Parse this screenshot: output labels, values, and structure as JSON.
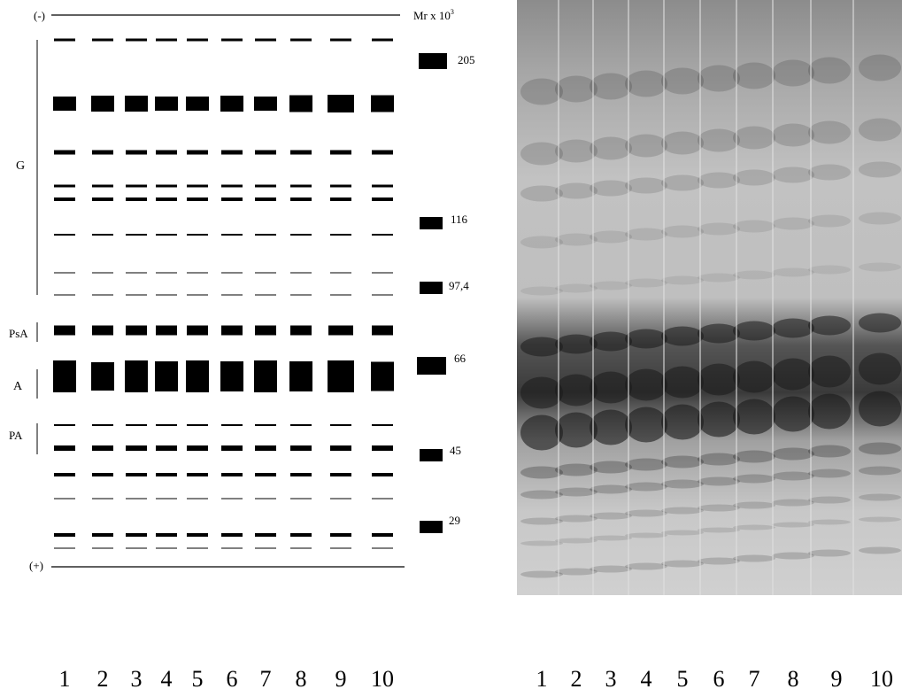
{
  "schematic": {
    "top_label": "(-)",
    "bottom_label": "(+)",
    "marker_header": "Mr x 10",
    "marker_header_sup": "3",
    "groups": [
      {
        "id": "g",
        "label": "G"
      },
      {
        "id": "psa",
        "label": "PsA"
      },
      {
        "id": "a",
        "label": "A"
      },
      {
        "id": "pa",
        "label": "PA"
      }
    ],
    "markers": [
      "205",
      "116",
      "97,4",
      "66",
      "45",
      "29"
    ],
    "lane_labels": [
      "1",
      "2",
      "3",
      "4",
      "5",
      "6",
      "7",
      "8",
      "9",
      "10"
    ]
  },
  "gel": {
    "lane_labels": [
      "1",
      "2",
      "3",
      "4",
      "5",
      "6",
      "7",
      "8",
      "9",
      "10"
    ]
  }
}
